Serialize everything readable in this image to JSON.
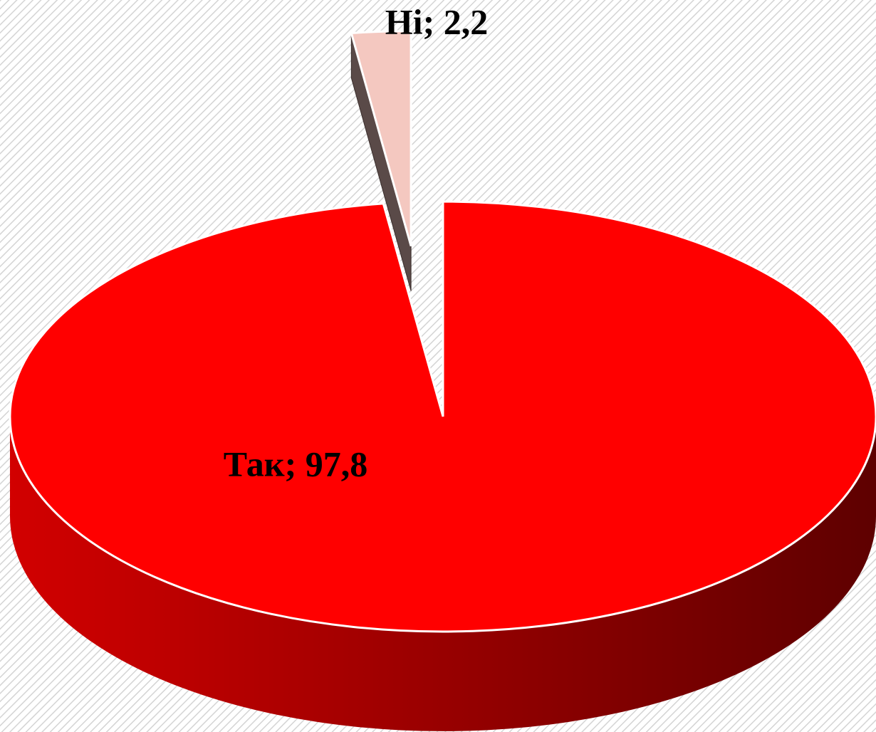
{
  "chart_data": {
    "type": "pie3d",
    "categories": [
      "Так",
      "Ні"
    ],
    "values": [
      97.8,
      2.2
    ],
    "value_labels": [
      "Так; 97,8",
      "Ні; 2,2"
    ],
    "colors": [
      "#ff0000",
      "#f4c8c0"
    ]
  }
}
